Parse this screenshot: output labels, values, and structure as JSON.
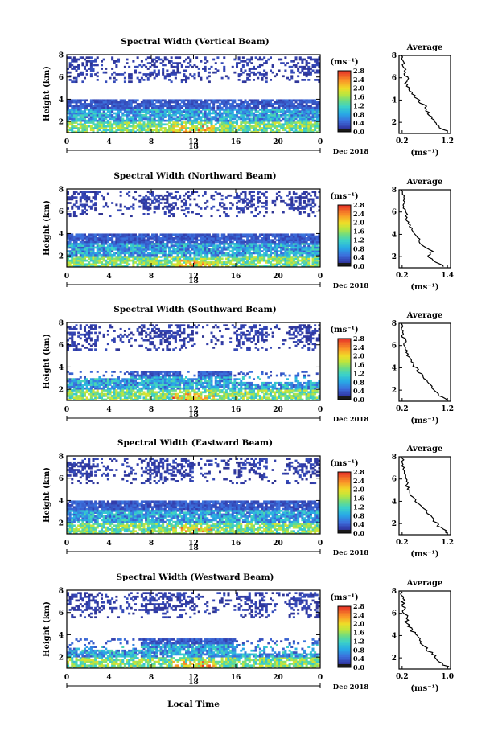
{
  "figure": {
    "date_label": "Dec 2018",
    "xaxis_bottom_label": "Local Time",
    "xaxis_day_label": "18",
    "ylabel": "Height (km)",
    "colorbar_unit": "(ms⁻¹)",
    "avg_title": "Average",
    "avg_xlabel": "(ms⁻¹)"
  },
  "chart_data": [
    {
      "type": "heatmap",
      "title": "Spectral Width (Vertical Beam)",
      "xlabel": "",
      "ylabel": "Height (km)",
      "xlim": [
        0,
        24
      ],
      "ylim": [
        1,
        8
      ],
      "xticks": [
        "0",
        "4",
        "8",
        "12",
        "16",
        "20",
        "0"
      ],
      "yticks": [
        "2",
        "4",
        "6",
        "8"
      ],
      "colorbar": {
        "ticks": [
          "0.0",
          "0.4",
          "0.8",
          "1.2",
          "1.6",
          "2.0",
          "2.4",
          "2.8"
        ],
        "range": [
          0,
          2.8
        ]
      },
      "average_profile": {
        "xlim": [
          0.2,
          1.2
        ],
        "xticks": [
          "0.2",
          "1.2"
        ],
        "ylim": [
          1,
          8
        ],
        "yticks": [
          "2",
          "4",
          "6",
          "8"
        ],
        "height_km": [
          1.2,
          1.5,
          2.0,
          2.5,
          3.0,
          3.5,
          4.0,
          4.5,
          5.0,
          5.5,
          6.0,
          6.5,
          7.0,
          7.5,
          8.0
        ],
        "width_ms": [
          1.2,
          1.05,
          0.9,
          0.85,
          0.75,
          0.7,
          0.55,
          0.45,
          0.35,
          0.3,
          0.3,
          0.25,
          0.25,
          0.22,
          0.2
        ]
      }
    },
    {
      "type": "heatmap",
      "title": "Spectral Width (Northward Beam)",
      "xlabel": "",
      "ylabel": "Height (km)",
      "xlim": [
        0,
        24
      ],
      "ylim": [
        1,
        8
      ],
      "xticks": [
        "0",
        "4",
        "8",
        "12",
        "16",
        "20",
        "0"
      ],
      "yticks": [
        "2",
        "4",
        "6",
        "8"
      ],
      "colorbar": {
        "ticks": [
          "0.0",
          "0.4",
          "0.8",
          "1.2",
          "1.6",
          "2.0",
          "2.4",
          "2.8"
        ],
        "range": [
          0,
          2.8
        ]
      },
      "average_profile": {
        "xlim": [
          0.2,
          1.4
        ],
        "xticks": [
          "0.2",
          "1.4"
        ],
        "ylim": [
          1,
          8
        ],
        "yticks": [
          "2",
          "4",
          "6",
          "8"
        ],
        "height_km": [
          1.2,
          1.5,
          2.0,
          2.5,
          3.0,
          3.5,
          4.0,
          4.5,
          5.0,
          5.5,
          6.0,
          6.5,
          7.0,
          7.5,
          8.0
        ],
        "width_ms": [
          1.3,
          1.1,
          0.9,
          1.0,
          0.75,
          0.65,
          0.55,
          0.45,
          0.35,
          0.3,
          0.3,
          0.25,
          0.25,
          0.22,
          0.2
        ]
      }
    },
    {
      "type": "heatmap",
      "title": "Spectral Width (Southward Beam)",
      "xlabel": "",
      "ylabel": "Height (km)",
      "xlim": [
        0,
        24
      ],
      "ylim": [
        1,
        8
      ],
      "xticks": [
        "0",
        "4",
        "8",
        "12",
        "16",
        "20",
        "0"
      ],
      "yticks": [
        "2",
        "4",
        "6",
        "8"
      ],
      "colorbar": {
        "ticks": [
          "0.0",
          "0.4",
          "0.8",
          "1.2",
          "1.6",
          "2.0",
          "2.4",
          "2.8"
        ],
        "range": [
          0,
          2.8
        ]
      },
      "average_profile": {
        "xlim": [
          0.2,
          1.2
        ],
        "xticks": [
          "0.2",
          "1.2"
        ],
        "ylim": [
          1,
          8
        ],
        "yticks": [
          "2",
          "4",
          "6",
          "8"
        ],
        "height_km": [
          1.2,
          1.5,
          2.0,
          2.5,
          3.0,
          3.5,
          4.0,
          4.5,
          5.0,
          5.5,
          6.0,
          6.5,
          7.0,
          7.5,
          8.0
        ],
        "width_ms": [
          1.2,
          1.0,
          0.9,
          0.8,
          0.7,
          0.6,
          0.5,
          0.4,
          0.35,
          0.3,
          0.28,
          0.25,
          0.22,
          0.2,
          0.2
        ]
      }
    },
    {
      "type": "heatmap",
      "title": "Spectral Width (Eastward Beam)",
      "xlabel": "",
      "ylabel": "Height (km)",
      "xlim": [
        0,
        24
      ],
      "ylim": [
        1,
        8
      ],
      "xticks": [
        "0",
        "4",
        "8",
        "12",
        "16",
        "20",
        "0"
      ],
      "yticks": [
        "2",
        "4",
        "6",
        "8"
      ],
      "colorbar": {
        "ticks": [
          "0.0",
          "0.4",
          "0.8",
          "1.2",
          "1.6",
          "2.0",
          "2.4",
          "2.8"
        ],
        "range": [
          0,
          2.8
        ]
      },
      "average_profile": {
        "xlim": [
          0.2,
          1.2
        ],
        "xticks": [
          "0.2",
          "1.2"
        ],
        "ylim": [
          1,
          8
        ],
        "yticks": [
          "2",
          "4",
          "6",
          "8"
        ],
        "height_km": [
          1.2,
          1.5,
          2.0,
          2.5,
          3.0,
          3.5,
          4.0,
          4.5,
          5.0,
          5.5,
          6.0,
          6.5,
          7.0,
          7.5,
          8.0
        ],
        "width_ms": [
          1.2,
          1.1,
          0.95,
          0.85,
          0.75,
          0.65,
          0.5,
          0.4,
          0.35,
          0.3,
          0.28,
          0.25,
          0.22,
          0.2,
          0.2
        ]
      }
    },
    {
      "type": "heatmap",
      "title": "Spectral Width (Westward Beam)",
      "xlabel": "Local Time",
      "ylabel": "Height (km)",
      "xlim": [
        0,
        24
      ],
      "ylim": [
        1,
        8
      ],
      "xticks": [
        "0",
        "4",
        "8",
        "12",
        "16",
        "20",
        "0"
      ],
      "yticks": [
        "2",
        "4",
        "6",
        "8"
      ],
      "colorbar": {
        "ticks": [
          "0.0",
          "0.4",
          "0.8",
          "1.2",
          "1.6",
          "2.0",
          "2.4",
          "2.8"
        ],
        "range": [
          0,
          2.8
        ]
      },
      "average_profile": {
        "xlim": [
          0.2,
          1.0
        ],
        "xticks": [
          "0.2",
          "1.0"
        ],
        "ylim": [
          1,
          8
        ],
        "yticks": [
          "2",
          "4",
          "6",
          "8"
        ],
        "height_km": [
          1.2,
          1.5,
          2.0,
          2.5,
          3.0,
          3.5,
          4.0,
          4.5,
          5.0,
          5.5,
          6.0,
          6.5,
          7.0,
          7.5,
          8.0
        ],
        "width_ms": [
          1.0,
          0.9,
          0.8,
          0.7,
          0.6,
          0.5,
          0.45,
          0.35,
          0.3,
          0.28,
          0.25,
          0.22,
          0.22,
          0.2,
          0.2
        ]
      }
    }
  ]
}
